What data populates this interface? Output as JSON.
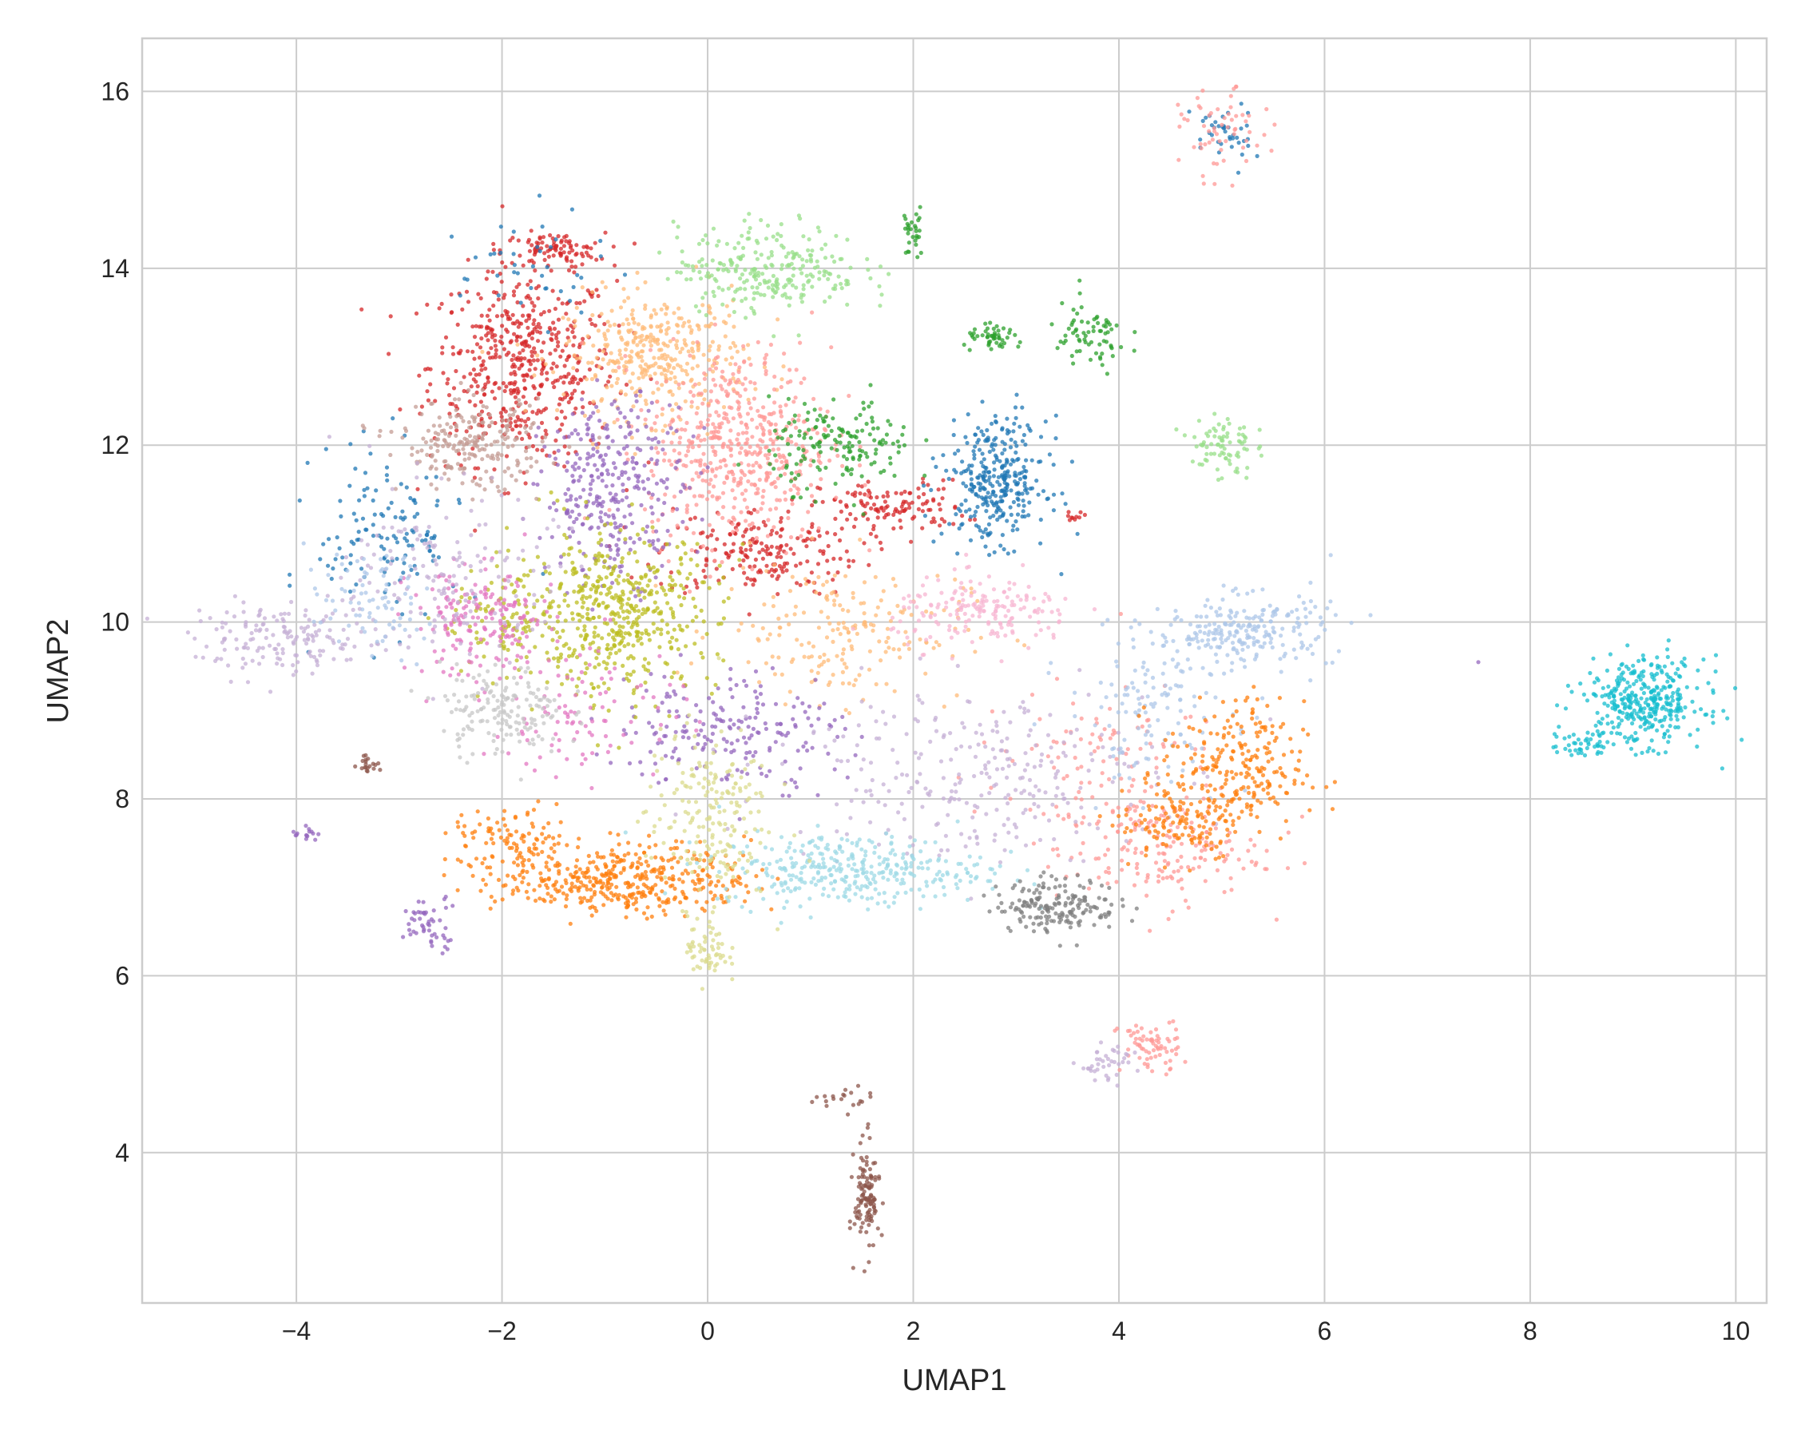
{
  "chart_data": {
    "type": "scatter",
    "title": "",
    "xlabel": "UMAP1",
    "ylabel": "UMAP2",
    "xlim": [
      -5.5,
      10.3
    ],
    "ylim": [
      2.3,
      16.6
    ],
    "grid": true,
    "legend": "none",
    "x_ticks": [
      -4,
      -2,
      0,
      2,
      4,
      6,
      8,
      10
    ],
    "x_tick_labels": [
      "−4",
      "−2",
      "0",
      "2",
      "4",
      "6",
      "8",
      "10"
    ],
    "y_ticks": [
      4,
      6,
      8,
      10,
      12,
      14,
      16
    ],
    "y_tick_labels": [
      "4",
      "6",
      "8",
      "10",
      "12",
      "14",
      "16"
    ],
    "clusters": [
      {
        "color": "#d62728",
        "center": [
          -1.8,
          12.9
        ],
        "spread": [
          0.45,
          0.55
        ],
        "n": 520
      },
      {
        "color": "#d62728",
        "center": [
          -1.5,
          14.2
        ],
        "spread": [
          0.25,
          0.1
        ],
        "n": 90
      },
      {
        "color": "#d62728",
        "center": [
          0.5,
          10.8
        ],
        "spread": [
          0.5,
          0.25
        ],
        "n": 200
      },
      {
        "color": "#d62728",
        "center": [
          1.8,
          11.3
        ],
        "spread": [
          0.35,
          0.15
        ],
        "n": 120
      },
      {
        "color": "#ffbb78",
        "center": [
          -0.5,
          13.0
        ],
        "spread": [
          0.45,
          0.35
        ],
        "n": 380
      },
      {
        "color": "#ffbb78",
        "center": [
          1.3,
          9.9
        ],
        "spread": [
          0.6,
          0.4
        ],
        "n": 200
      },
      {
        "color": "#ff9896",
        "center": [
          0.3,
          12.0
        ],
        "spread": [
          0.45,
          0.55
        ],
        "n": 520
      },
      {
        "color": "#ff9896",
        "center": [
          4.4,
          7.4
        ],
        "spread": [
          0.5,
          0.3
        ],
        "n": 160
      },
      {
        "color": "#ff9896",
        "center": [
          3.8,
          8.3
        ],
        "spread": [
          0.6,
          0.5
        ],
        "n": 120
      },
      {
        "color": "#98df8a",
        "center": [
          0.6,
          14.0
        ],
        "spread": [
          0.45,
          0.25
        ],
        "n": 260
      },
      {
        "color": "#98df8a",
        "center": [
          5.0,
          12.0
        ],
        "spread": [
          0.15,
          0.2
        ],
        "n": 80
      },
      {
        "color": "#2ca02c",
        "center": [
          1.3,
          12.0
        ],
        "spread": [
          0.35,
          0.25
        ],
        "n": 160
      },
      {
        "color": "#2ca02c",
        "center": [
          2.8,
          13.2
        ],
        "spread": [
          0.15,
          0.07
        ],
        "n": 50
      },
      {
        "color": "#2ca02c",
        "center": [
          3.7,
          13.2
        ],
        "spread": [
          0.2,
          0.2
        ],
        "n": 70
      },
      {
        "color": "#2ca02c",
        "center": [
          2.0,
          14.4
        ],
        "spread": [
          0.05,
          0.15
        ],
        "n": 30
      },
      {
        "color": "#1f77b4",
        "center": [
          2.8,
          11.6
        ],
        "spread": [
          0.25,
          0.35
        ],
        "n": 320
      },
      {
        "color": "#1f77b4",
        "center": [
          -3.1,
          11.0
        ],
        "spread": [
          0.35,
          0.5
        ],
        "n": 130
      },
      {
        "color": "#1f77b4",
        "center": [
          -1.7,
          14.0
        ],
        "spread": [
          0.35,
          0.3
        ],
        "n": 40
      },
      {
        "color": "#1f77b4",
        "center": [
          5.0,
          15.5
        ],
        "spread": [
          0.15,
          0.2
        ],
        "n": 40
      },
      {
        "color": "#9467bd",
        "center": [
          -0.9,
          11.5
        ],
        "spread": [
          0.35,
          0.5
        ],
        "n": 320
      },
      {
        "color": "#9467bd",
        "center": [
          0.2,
          8.8
        ],
        "spread": [
          0.55,
          0.35
        ],
        "n": 200
      },
      {
        "color": "#bcbd22",
        "center": [
          -0.9,
          10.1
        ],
        "spread": [
          0.5,
          0.45
        ],
        "n": 500
      },
      {
        "color": "#bcbd22",
        "center": [
          -2.0,
          10.0
        ],
        "spread": [
          0.3,
          0.3
        ],
        "n": 80
      },
      {
        "color": "#c49c94",
        "center": [
          -2.3,
          12.0
        ],
        "spread": [
          0.35,
          0.25
        ],
        "n": 220
      },
      {
        "color": "#e377c2",
        "center": [
          -2.2,
          10.0
        ],
        "spread": [
          0.35,
          0.3
        ],
        "n": 180
      },
      {
        "color": "#e377c2",
        "center": [
          -1.2,
          9.0
        ],
        "spread": [
          0.5,
          0.4
        ],
        "n": 100
      },
      {
        "color": "#c5b0d5",
        "center": [
          -4.1,
          9.8
        ],
        "spread": [
          0.45,
          0.2
        ],
        "n": 160
      },
      {
        "color": "#c5b0d5",
        "center": [
          2.5,
          8.3
        ],
        "spread": [
          0.9,
          0.5
        ],
        "n": 280
      },
      {
        "color": "#c5b0d5",
        "center": [
          -2.5,
          10.5
        ],
        "spread": [
          0.5,
          0.5
        ],
        "n": 160
      },
      {
        "color": "#aec7e8",
        "center": [
          5.2,
          9.9
        ],
        "spread": [
          0.45,
          0.2
        ],
        "n": 240
      },
      {
        "color": "#aec7e8",
        "center": [
          4.3,
          9.0
        ],
        "spread": [
          0.4,
          0.4
        ],
        "n": 120
      },
      {
        "color": "#aec7e8",
        "center": [
          -3.3,
          10.2
        ],
        "spread": [
          0.3,
          0.3
        ],
        "n": 80
      },
      {
        "color": "#ff7f0e",
        "center": [
          -0.8,
          7.1
        ],
        "spread": [
          0.6,
          0.2
        ],
        "n": 420
      },
      {
        "color": "#ff7f0e",
        "center": [
          -1.9,
          7.5
        ],
        "spread": [
          0.3,
          0.2
        ],
        "n": 100
      },
      {
        "color": "#ff7f0e",
        "center": [
          5.1,
          8.3
        ],
        "spread": [
          0.35,
          0.4
        ],
        "n": 260
      },
      {
        "color": "#ff7f0e",
        "center": [
          4.6,
          7.7
        ],
        "spread": [
          0.3,
          0.2
        ],
        "n": 100
      },
      {
        "color": "#9edae5",
        "center": [
          1.4,
          7.2
        ],
        "spread": [
          0.65,
          0.2
        ],
        "n": 340
      },
      {
        "color": "#dbdb8d",
        "center": [
          0.0,
          7.8
        ],
        "spread": [
          0.3,
          0.5
        ],
        "n": 200
      },
      {
        "color": "#dbdb8d",
        "center": [
          0.0,
          6.3
        ],
        "spread": [
          0.1,
          0.2
        ],
        "n": 60
      },
      {
        "color": "#7f7f7f",
        "center": [
          3.4,
          6.8
        ],
        "spread": [
          0.3,
          0.15
        ],
        "n": 180
      },
      {
        "color": "#c7c7c7",
        "center": [
          -2.0,
          9.0
        ],
        "spread": [
          0.3,
          0.25
        ],
        "n": 160
      },
      {
        "color": "#f7b6d2",
        "center": [
          2.7,
          10.1
        ],
        "spread": [
          0.45,
          0.2
        ],
        "n": 180
      },
      {
        "color": "#17becf",
        "center": [
          9.1,
          9.1
        ],
        "spread": [
          0.3,
          0.25
        ],
        "n": 360
      },
      {
        "color": "#17becf",
        "center": [
          8.5,
          8.6
        ],
        "spread": [
          0.15,
          0.07
        ],
        "n": 40
      },
      {
        "color": "#8c564b",
        "center": [
          1.55,
          3.5
        ],
        "spread": [
          0.06,
          0.3
        ],
        "n": 120
      },
      {
        "color": "#8c564b",
        "center": [
          1.3,
          4.6
        ],
        "spread": [
          0.15,
          0.07
        ],
        "n": 20
      },
      {
        "color": "#ff9896",
        "center": [
          4.3,
          5.2
        ],
        "spread": [
          0.15,
          0.15
        ],
        "n": 70
      },
      {
        "color": "#c5b0d5",
        "center": [
          3.9,
          5.0
        ],
        "spread": [
          0.15,
          0.1
        ],
        "n": 40
      },
      {
        "color": "#ff9896",
        "center": [
          5.0,
          15.5
        ],
        "spread": [
          0.2,
          0.25
        ],
        "n": 60
      },
      {
        "color": "#9467bd",
        "center": [
          -2.7,
          6.6
        ],
        "spread": [
          0.15,
          0.15
        ],
        "n": 50
      },
      {
        "color": "#8c564b",
        "center": [
          -3.3,
          8.4
        ],
        "spread": [
          0.05,
          0.05
        ],
        "n": 20
      },
      {
        "color": "#9467bd",
        "center": [
          -3.9,
          7.6
        ],
        "spread": [
          0.08,
          0.05
        ],
        "n": 15
      },
      {
        "color": "#d62728",
        "center": [
          3.55,
          11.2
        ],
        "spread": [
          0.05,
          0.03
        ],
        "n": 10
      },
      {
        "color": "#9467bd",
        "center": [
          7.5,
          9.55
        ],
        "spread": [
          0.01,
          0.01
        ],
        "n": 1
      }
    ]
  }
}
